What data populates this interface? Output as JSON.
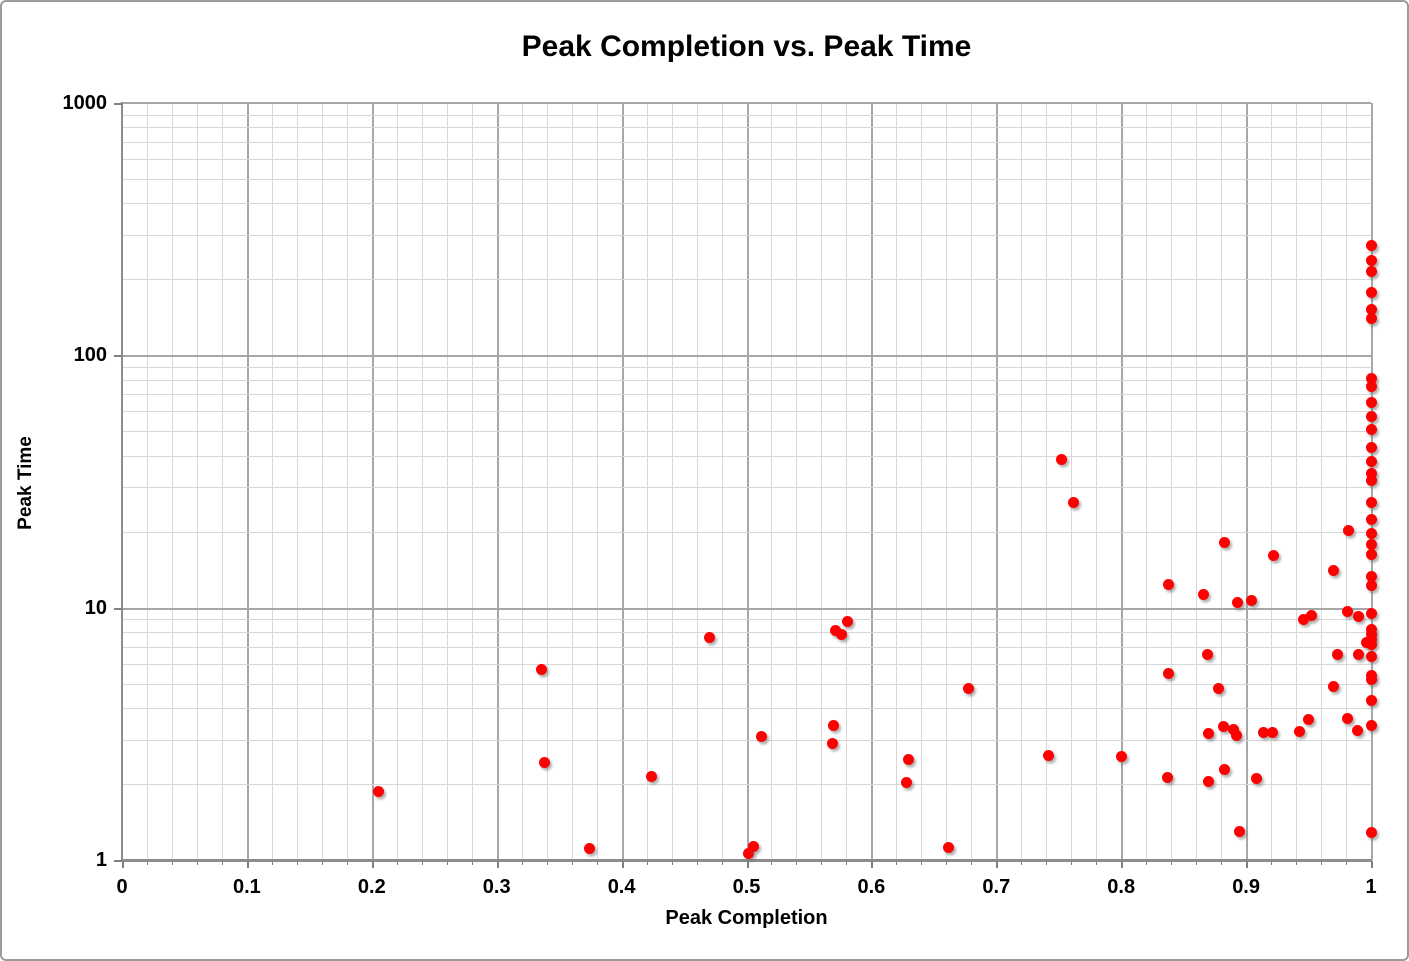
{
  "chart_data": {
    "type": "scatter",
    "title": "Peak Completion vs. Peak Time",
    "xlabel": "Peak Completion",
    "ylabel": "Peak Time",
    "xlim": [
      0,
      1
    ],
    "ylim": [
      1,
      1000
    ],
    "y_scale": "log",
    "grid": "both",
    "legend": "none",
    "x_tick_values": [
      0,
      0.1,
      0.2,
      0.3,
      0.4,
      0.5,
      0.6,
      0.7,
      0.8,
      0.9,
      1
    ],
    "x_tick_labels": [
      "0",
      "0.1",
      "0.2",
      "0.3",
      "0.4",
      "0.5",
      "0.6",
      "0.7",
      "0.8",
      "0.9",
      "1"
    ],
    "y_tick_values": [
      1,
      10,
      100,
      1000
    ],
    "y_tick_labels": [
      "1",
      "10",
      "100",
      "1000"
    ],
    "x_minor_grid_step": 0.02,
    "marker_color": "#fe0000",
    "grid_minor_color": "#d8d8d8",
    "grid_major_color": "#a7a7a7",
    "axis_color": "#8c8c8c",
    "points": [
      [
        0.205,
        1.87
      ],
      [
        0.336,
        5.7
      ],
      [
        0.338,
        2.44
      ],
      [
        0.374,
        1.11
      ],
      [
        0.424,
        2.14
      ],
      [
        0.47,
        7.65
      ],
      [
        0.502,
        1.06
      ],
      [
        0.506,
        1.13
      ],
      [
        0.512,
        3.08
      ],
      [
        0.569,
        2.9
      ],
      [
        0.57,
        3.4
      ],
      [
        0.571,
        8.1
      ],
      [
        0.576,
        7.8
      ],
      [
        0.581,
        8.85
      ],
      [
        0.628,
        2.03
      ],
      [
        0.63,
        2.5
      ],
      [
        0.662,
        1.12
      ],
      [
        0.678,
        4.8
      ],
      [
        0.742,
        2.6
      ],
      [
        0.752,
        38.8
      ],
      [
        0.762,
        26.2
      ],
      [
        0.8,
        2.57
      ],
      [
        0.837,
        2.13
      ],
      [
        0.838,
        12.4
      ],
      [
        0.838,
        5.5
      ],
      [
        0.866,
        11.3
      ],
      [
        0.869,
        6.5
      ],
      [
        0.87,
        3.18
      ],
      [
        0.87,
        2.05
      ],
      [
        0.878,
        4.8
      ],
      [
        0.882,
        3.37
      ],
      [
        0.883,
        18.2
      ],
      [
        0.883,
        2.28
      ],
      [
        0.89,
        3.3
      ],
      [
        0.892,
        3.12
      ],
      [
        0.893,
        10.5
      ],
      [
        0.895,
        1.3
      ],
      [
        0.904,
        10.7
      ],
      [
        0.908,
        2.11
      ],
      [
        0.914,
        3.2
      ],
      [
        0.921,
        3.2
      ],
      [
        0.922,
        16.1
      ],
      [
        0.943,
        3.23
      ],
      [
        0.946,
        9.0
      ],
      [
        0.95,
        3.6
      ],
      [
        0.952,
        9.3
      ],
      [
        0.97,
        14.1
      ],
      [
        0.97,
        4.85
      ],
      [
        0.973,
        6.55
      ],
      [
        0.981,
        9.65
      ],
      [
        0.981,
        3.65
      ],
      [
        0.982,
        20.3
      ],
      [
        0.989,
        3.25
      ],
      [
        0.99,
        9.2
      ],
      [
        0.99,
        6.5
      ],
      [
        0.996,
        7.3
      ],
      [
        1.0,
        272
      ],
      [
        1.0,
        237
      ],
      [
        1.0,
        215
      ],
      [
        1.0,
        178
      ],
      [
        1.0,
        152
      ],
      [
        1.0,
        140
      ],
      [
        1.0,
        81
      ],
      [
        1.0,
        75
      ],
      [
        1.0,
        65
      ],
      [
        1.0,
        57
      ],
      [
        1.0,
        51
      ],
      [
        1.0,
        43
      ],
      [
        1.0,
        38
      ],
      [
        1.0,
        34
      ],
      [
        1.0,
        32
      ],
      [
        1.0,
        26
      ],
      [
        1.0,
        22.4
      ],
      [
        1.0,
        19.7
      ],
      [
        1.0,
        17.8
      ],
      [
        1.0,
        16.3
      ],
      [
        1.0,
        13.3
      ],
      [
        1.0,
        12.2
      ],
      [
        1.0,
        9.5
      ],
      [
        1.0,
        8.2
      ],
      [
        1.0,
        7.8
      ],
      [
        1.0,
        7.45
      ],
      [
        1.0,
        7.15
      ],
      [
        1.0,
        6.4
      ],
      [
        1.0,
        5.4
      ],
      [
        1.0,
        5.2
      ],
      [
        1.0,
        4.3
      ],
      [
        1.0,
        3.4
      ],
      [
        1.0,
        1.29
      ]
    ]
  }
}
